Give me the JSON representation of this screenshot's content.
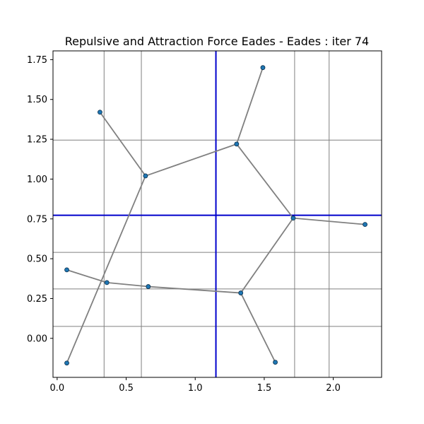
{
  "chart_data": {
    "type": "scatter",
    "title": "Repulsive and Attraction Force Eades - Eades : iter 74",
    "xlabel": "",
    "ylabel": "",
    "xlim": [
      -0.03,
      2.35
    ],
    "ylim": [
      -0.245,
      1.805
    ],
    "x_ticks": [
      0.0,
      0.5,
      1.0,
      1.5,
      2.0
    ],
    "x_tick_labels": [
      "0.0",
      "0.5",
      "1.0",
      "1.5",
      "2.0"
    ],
    "y_ticks": [
      0.0,
      0.25,
      0.5,
      0.75,
      1.0,
      1.25,
      1.5,
      1.75
    ],
    "y_tick_labels": [
      "0.00",
      "0.25",
      "0.50",
      "0.75",
      "1.00",
      "1.25",
      "1.50",
      "1.75"
    ],
    "grid": true,
    "grid_lines_x": [
      0.34,
      0.61,
      1.15,
      1.72,
      1.97
    ],
    "grid_lines_y": [
      0.075,
      0.31,
      0.54,
      0.773,
      1.245
    ],
    "highlight_lines": {
      "x": 1.15,
      "y": 0.773
    },
    "colors": {
      "node": "#1f77b4",
      "node_edge": "#0b2e4a",
      "edge": "#808080",
      "grid": "#808080",
      "highlight": "#0000cc"
    },
    "nodes": [
      {
        "x": 0.31,
        "y": 1.42
      },
      {
        "x": 0.64,
        "y": 1.02
      },
      {
        "x": 1.3,
        "y": 1.22
      },
      {
        "x": 1.49,
        "y": 1.7
      },
      {
        "x": 1.71,
        "y": 0.755
      },
      {
        "x": 2.23,
        "y": 0.715
      },
      {
        "x": 0.07,
        "y": 0.43
      },
      {
        "x": 0.36,
        "y": 0.35
      },
      {
        "x": 0.66,
        "y": 0.325
      },
      {
        "x": 1.33,
        "y": 0.285
      },
      {
        "x": 0.07,
        "y": -0.155
      },
      {
        "x": 1.58,
        "y": -0.15
      }
    ],
    "edges": [
      [
        0,
        1
      ],
      [
        1,
        2
      ],
      [
        2,
        3
      ],
      [
        2,
        4
      ],
      [
        4,
        5
      ],
      [
        4,
        9
      ],
      [
        6,
        7
      ],
      [
        7,
        8
      ],
      [
        8,
        9
      ],
      [
        9,
        11
      ],
      [
        1,
        10
      ]
    ]
  }
}
